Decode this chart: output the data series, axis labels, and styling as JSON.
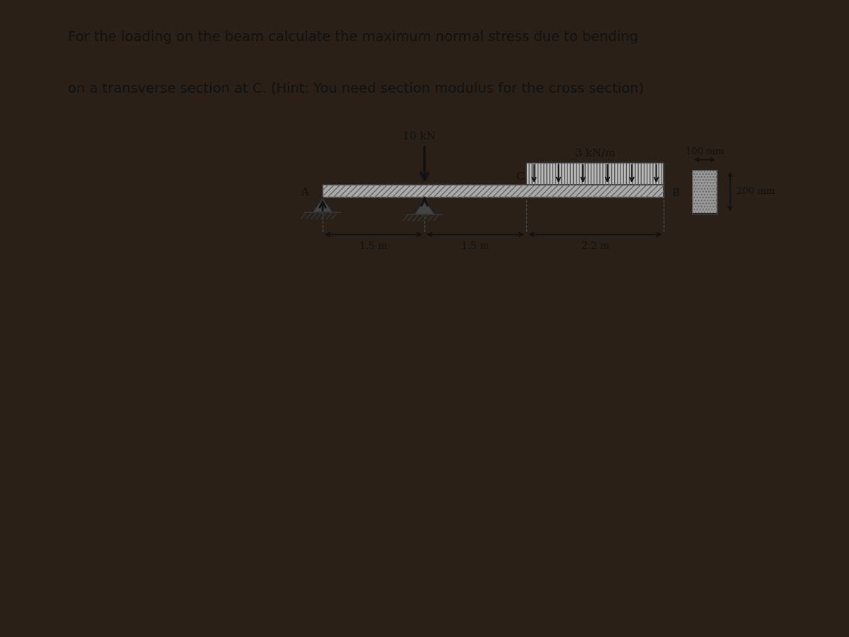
{
  "title_line1": "For the loading on the beam calculate the maximum normal stress due to bending",
  "title_line2": "on a transverse section at C. (Hint: You need section modulus for the cross section)",
  "load_10kN_label": "10 kN",
  "dist_load_label": "3 kN/m",
  "cross_section_width_label": "100 mm",
  "cross_section_height_label": "200 mm",
  "dim_1": "1.5 m",
  "dim_2": "1.5 m",
  "dim_3": "2.2 m",
  "label_A": "A",
  "label_B": "B",
  "label_C": "C",
  "paper_color": "#f0ece4",
  "dark_bg_color": "#2a2018",
  "beam_fill": "#aaaaaa",
  "beam_edge": "#333333",
  "support_color": "#444444",
  "cs_fill": "#999999"
}
